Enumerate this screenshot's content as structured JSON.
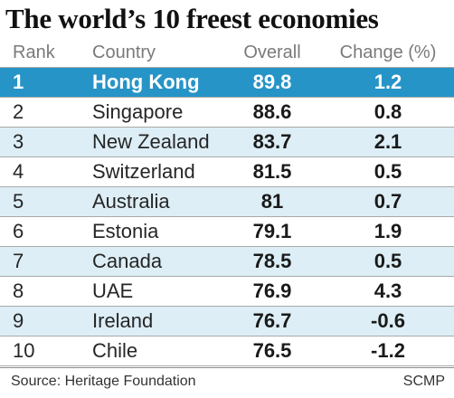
{
  "chart_data": {
    "type": "table",
    "title": "The world’s 10 freest economies",
    "columns": [
      "Rank",
      "Country",
      "Overall",
      "Change (%)"
    ],
    "rows": [
      {
        "rank": "1",
        "country": "Hong Kong",
        "overall": "89.8",
        "change": "1.2"
      },
      {
        "rank": "2",
        "country": "Singapore",
        "overall": "88.6",
        "change": "0.8"
      },
      {
        "rank": "3",
        "country": "New Zealand",
        "overall": "83.7",
        "change": "2.1"
      },
      {
        "rank": "4",
        "country": "Switzerland",
        "overall": "81.5",
        "change": "0.5"
      },
      {
        "rank": "5",
        "country": "Australia",
        "overall": "81",
        "change": "0.7"
      },
      {
        "rank": "6",
        "country": "Estonia",
        "overall": "79.1",
        "change": "1.9"
      },
      {
        "rank": "7",
        "country": "Canada",
        "overall": "78.5",
        "change": "0.5"
      },
      {
        "rank": "8",
        "country": "UAE",
        "overall": "76.9",
        "change": "4.3"
      },
      {
        "rank": "9",
        "country": "Ireland",
        "overall": "76.7",
        "change": "-0.6"
      },
      {
        "rank": "10",
        "country": "Chile",
        "overall": "76.5",
        "change": "-1.2"
      }
    ],
    "highlight_row": "Hong Kong",
    "highlight_color": "#2794c7",
    "stripe_color": "#ddeef6"
  },
  "footer": {
    "source": "Source: Heritage Foundation",
    "credit": "SCMP"
  }
}
